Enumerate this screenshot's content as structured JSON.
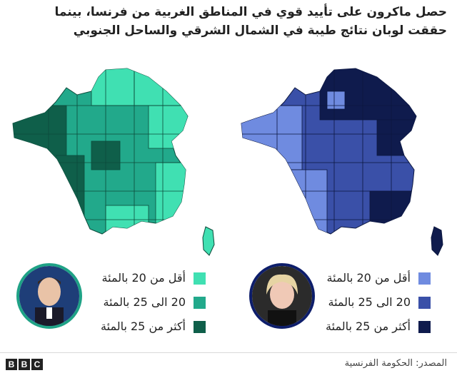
{
  "title": "حصل ماكرون على تأييد قوي في المناطق الغربية من فرنسا، بينما حققت لوبان نتائج طيبة في الشمال الشرقي والساحل الجنوبي",
  "colors": {
    "macron": [
      "#40e0b2",
      "#22a98b",
      "#0f5f4a"
    ],
    "lepen": [
      "#6f8be0",
      "#3a50a8",
      "#0f1b4d"
    ]
  },
  "legend_right": [
    {
      "label": "أقل من 20 بالمئة",
      "color": "#6f8be0"
    },
    {
      "label": "20 الى 25 بالمئة",
      "color": "#3a50a8"
    },
    {
      "label": "أكثر من 25 بالمئة",
      "color": "#0f1b4d"
    }
  ],
  "legend_left": [
    {
      "label": "أقل من 20 بالمئة",
      "color": "#40e0b2"
    },
    {
      "label": "20 الى 25 بالمئة",
      "color": "#22a98b"
    },
    {
      "label": "أكثر من 25 بالمئة",
      "color": "#0f5f4a"
    }
  ],
  "footer": {
    "brand": [
      "B",
      "B",
      "C"
    ],
    "source": "المصدر: الحكومة الفرنسية"
  }
}
